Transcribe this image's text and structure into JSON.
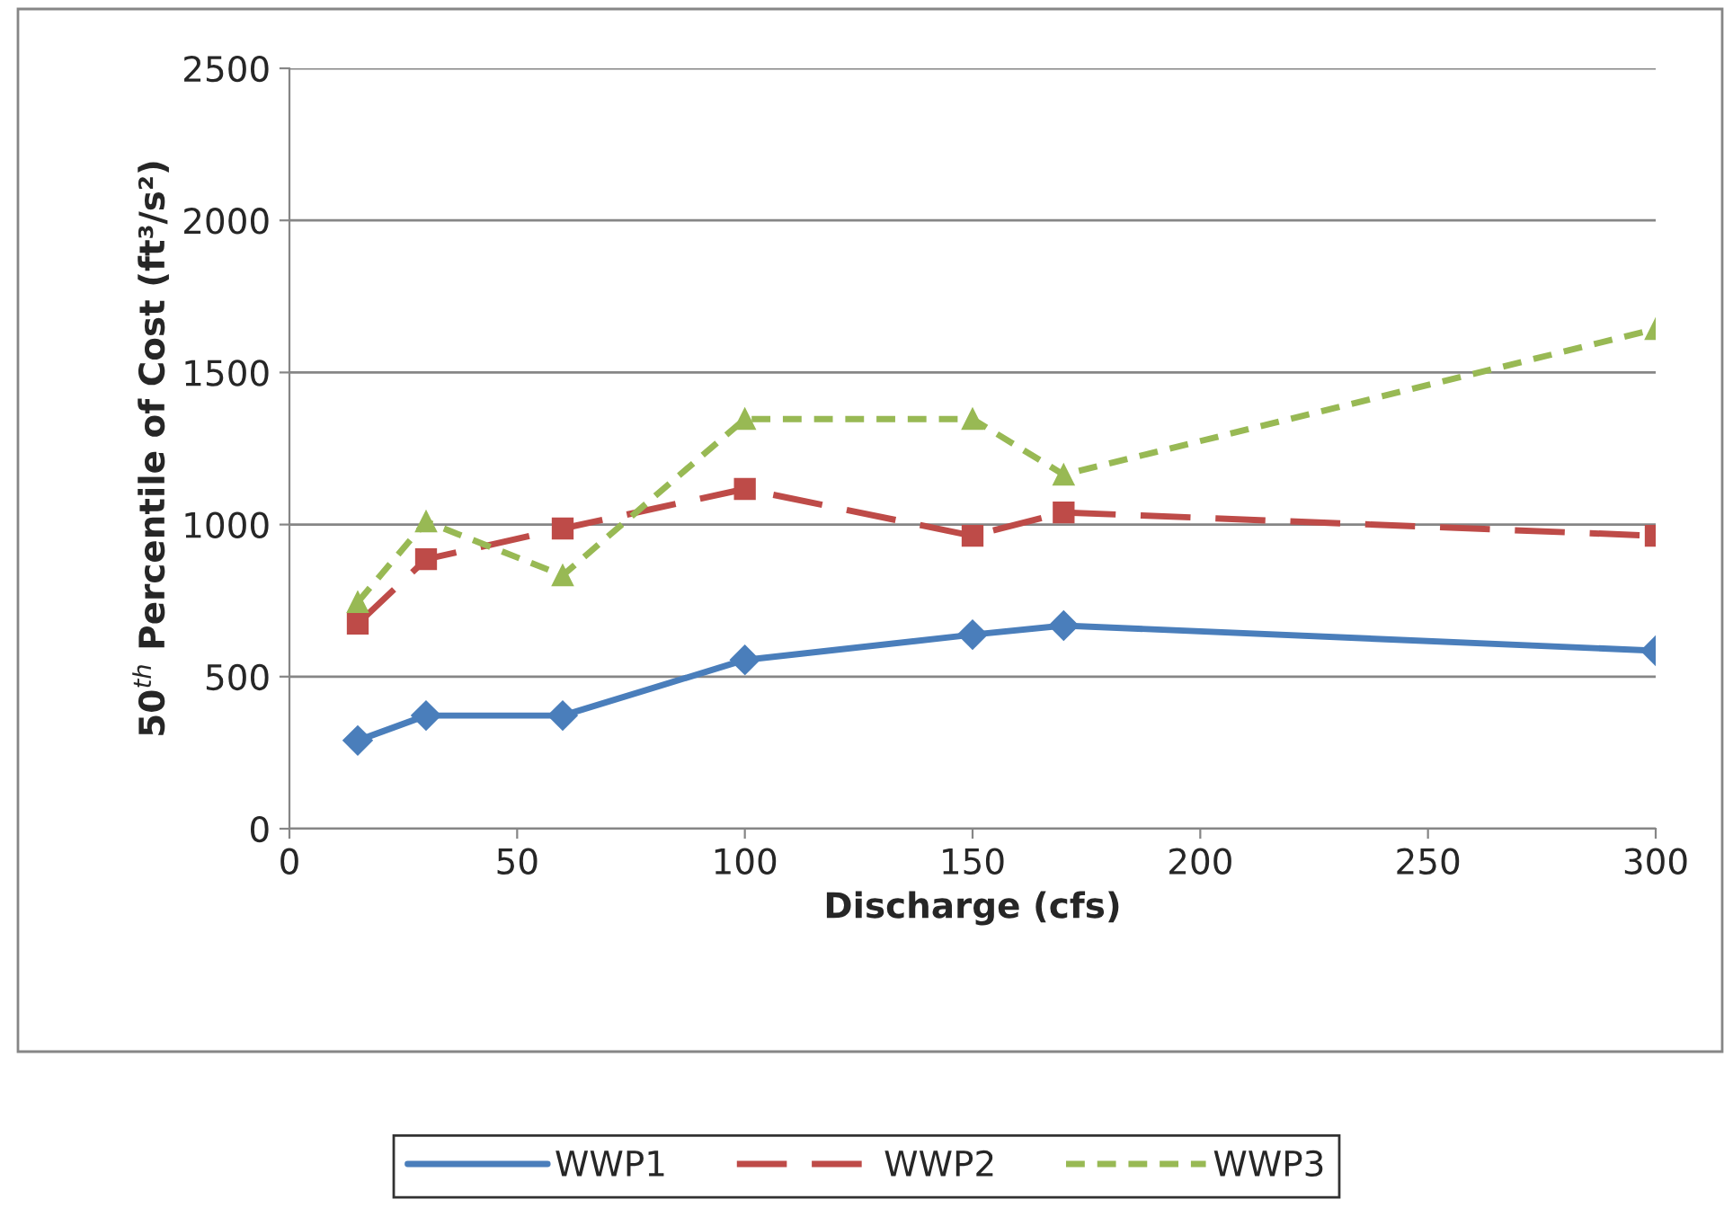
{
  "chart_data": {
    "type": "line",
    "xlabel": "Discharge (cfs)",
    "ylabel": "50$^{th}$ Percentile of Cost (ft³/s²)",
    "x": [
      15,
      30,
      60,
      100,
      150,
      170,
      300
    ],
    "series": [
      {
        "name": "WWP1",
        "color": "#4a7ebb",
        "marker": "diamond",
        "line_style": "solid",
        "values": [
          290,
          372,
          372,
          555,
          638,
          668,
          585
        ]
      },
      {
        "name": "WWP2",
        "color": "#be4b48",
        "marker": "square",
        "line_style": "dashed",
        "values": [
          674,
          886,
          987,
          1117,
          963,
          1040,
          963
        ]
      },
      {
        "name": "WWP3",
        "color": "#98b954",
        "marker": "triangle",
        "line_style": "dotted",
        "values": [
          745,
          1010,
          833,
          1347,
          1347,
          1164,
          1643
        ]
      }
    ],
    "xlim": [
      0,
      300
    ],
    "xticks": [
      0,
      50,
      100,
      150,
      200,
      250,
      300
    ],
    "ylim": [
      0,
      2500
    ],
    "yticks": [
      0,
      500,
      1000,
      1500,
      2000,
      2500
    ],
    "grid": "y",
    "legend": "bottom"
  }
}
